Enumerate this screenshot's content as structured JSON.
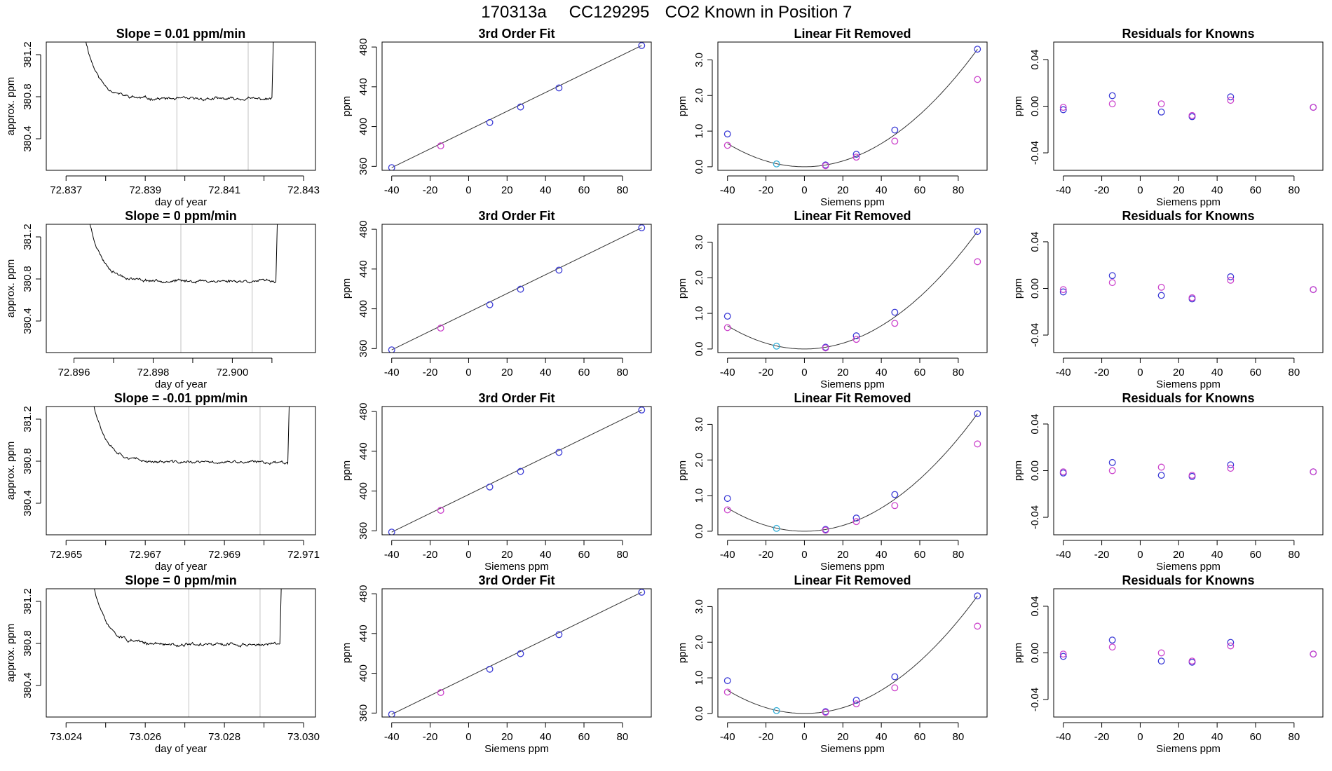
{
  "figure": {
    "title_parts": [
      "170313a",
      "CC129295",
      "CO2 Known in Position  7"
    ],
    "colors": {
      "trace": "#000000",
      "fit_line": "#333333",
      "vline": "#cccccc",
      "blue_points": "#3b3bd6",
      "magenta_points": "#cc44cc",
      "cyan_points": "#38b0d8"
    }
  },
  "chart_data": [
    {
      "type": "line",
      "title": "Slope =  0.01  ppm/min",
      "xlabel": "day of year",
      "ylabel": "approx. ppm",
      "xlim": [
        72.8365,
        72.8433
      ],
      "ylim": [
        380.1,
        381.32
      ],
      "xticks": [
        72.837,
        72.838,
        72.839,
        72.84,
        72.841,
        72.842,
        72.843
      ],
      "xtick_labels": [
        "72.837",
        "",
        "72.839",
        "",
        "72.841",
        "",
        "72.843"
      ],
      "yticks": [
        380.4,
        380.8,
        381.2
      ],
      "ytick_labels": [
        "380.4",
        "380.8",
        "381.2"
      ],
      "vlines": [
        72.8398,
        72.8416
      ],
      "trace": {
        "x_start": 72.8375,
        "x_rise": 72.8422,
        "x_end": 72.8423,
        "settle": 380.78,
        "noise": 0.016,
        "seed": 11
      }
    },
    {
      "type": "line",
      "title": "3rd Order Fit",
      "xlabel": "",
      "ylabel": "ppm",
      "xlim": [
        -45,
        95
      ],
      "ylim": [
        356,
        485
      ],
      "xticks": [
        -40,
        -20,
        0,
        20,
        40,
        60,
        80
      ],
      "xtick_labels": [
        "-40",
        "-20",
        "0",
        "20",
        "40",
        "60",
        "80"
      ],
      "yticks": [
        360,
        400,
        440,
        480
      ],
      "ytick_labels": [
        "360",
        "400",
        "440",
        "480"
      ],
      "fit_line": [
        [
          -40,
          358.7
        ],
        [
          90,
          481.5
        ]
      ],
      "series": [
        {
          "color": "blue",
          "x": [
            -40,
            11,
            27,
            47,
            90
          ],
          "y": [
            358.7,
            404.1,
            419.7,
            438.9,
            481.5
          ]
        },
        {
          "color": "magenta",
          "x": [
            -14.5
          ],
          "y": [
            380.6
          ]
        }
      ]
    },
    {
      "type": "line",
      "title": "Linear Fit Removed",
      "xlabel": "Siemens ppm",
      "ylabel": "ppm",
      "xlim": [
        -45,
        95
      ],
      "ylim": [
        -0.1,
        3.5
      ],
      "xticks": [
        -40,
        -20,
        0,
        20,
        40,
        60,
        80
      ],
      "xtick_labels": [
        "-40",
        "-20",
        "0",
        "20",
        "40",
        "60",
        "80"
      ],
      "yticks": [
        0.0,
        1.0,
        2.0,
        3.0
      ],
      "ytick_labels": [
        "0.0",
        "1.0",
        "2.0",
        "3.0"
      ],
      "curve_coeffs": [
        0.0,
        0.0,
        0.000407
      ],
      "series": [
        {
          "color": "blue",
          "x": [
            -40,
            11,
            27,
            47,
            90
          ],
          "y": [
            0.92,
            0.05,
            0.35,
            1.03,
            3.3
          ]
        },
        {
          "color": "cyan",
          "x": [
            -14.5
          ],
          "y": [
            0.08
          ]
        },
        {
          "color": "magenta",
          "x": [
            -40,
            11,
            27,
            47,
            90
          ],
          "y": [
            0.6,
            0.03,
            0.27,
            0.72,
            2.45
          ]
        }
      ]
    },
    {
      "type": "scatter",
      "title": "Residuals for Knowns",
      "xlabel": "Siemens ppm",
      "ylabel": "ppm",
      "xlim": [
        -45,
        95
      ],
      "ylim": [
        -0.055,
        0.055
      ],
      "xticks": [
        -40,
        -20,
        0,
        20,
        40,
        60,
        80
      ],
      "xtick_labels": [
        "-40",
        "-20",
        "0",
        "20",
        "40",
        "60",
        "80"
      ],
      "yticks": [
        -0.04,
        0.0,
        0.04
      ],
      "ytick_labels": [
        "-0.04",
        "0.00",
        "0.04"
      ],
      "series": [
        {
          "color": "blue",
          "x": [
            -40,
            -14.5,
            11,
            27,
            47,
            90
          ],
          "y": [
            -0.003,
            0.009,
            -0.005,
            -0.009,
            0.008,
            -0.001
          ]
        },
        {
          "color": "magenta",
          "x": [
            -40,
            -14.5,
            11,
            27,
            47,
            90
          ],
          "y": [
            -0.001,
            0.002,
            0.002,
            -0.008,
            0.005,
            -0.001
          ]
        }
      ]
    },
    {
      "type": "line",
      "title": "Slope =  0  ppm/min",
      "xlabel": "day of year",
      "ylabel": "approx. ppm",
      "xlim": [
        72.8953,
        72.9021
      ],
      "ylim": [
        380.1,
        381.32
      ],
      "xticks": [
        72.896,
        72.897,
        72.898,
        72.899,
        72.9,
        72.901
      ],
      "xtick_labels": [
        "72.896",
        "",
        "72.898",
        "",
        "72.900",
        ""
      ],
      "yticks": [
        380.4,
        380.8,
        381.2
      ],
      "ytick_labels": [
        "380.4",
        "380.8",
        "381.2"
      ],
      "vlines": [
        72.8987,
        72.9005
      ],
      "trace": {
        "x_start": 72.8964,
        "x_rise": 72.9011,
        "x_end": 72.9012,
        "settle": 380.78,
        "noise": 0.016,
        "seed": 23
      }
    },
    {
      "type": "line",
      "title": "3rd Order Fit",
      "xlabel": "",
      "ylabel": "ppm",
      "xlim": [
        -45,
        95
      ],
      "ylim": [
        356,
        485
      ],
      "xticks": [
        -40,
        -20,
        0,
        20,
        40,
        60,
        80
      ],
      "xtick_labels": [
        "-40",
        "-20",
        "0",
        "20",
        "40",
        "60",
        "80"
      ],
      "yticks": [
        360,
        400,
        440,
        480
      ],
      "ytick_labels": [
        "360",
        "400",
        "440",
        "480"
      ],
      "fit_line": [
        [
          -40,
          358.7
        ],
        [
          90,
          481.5
        ]
      ],
      "series": [
        {
          "color": "blue",
          "x": [
            -40,
            11,
            27,
            47,
            90
          ],
          "y": [
            358.7,
            404.1,
            419.7,
            438.9,
            481.5
          ]
        },
        {
          "color": "magenta",
          "x": [
            -14.5
          ],
          "y": [
            380.6
          ]
        }
      ]
    },
    {
      "type": "line",
      "title": "Linear Fit Removed",
      "xlabel": "Siemens ppm",
      "ylabel": "ppm",
      "xlim": [
        -45,
        95
      ],
      "ylim": [
        -0.1,
        3.5
      ],
      "xticks": [
        -40,
        -20,
        0,
        20,
        40,
        60,
        80
      ],
      "xtick_labels": [
        "-40",
        "-20",
        "0",
        "20",
        "40",
        "60",
        "80"
      ],
      "yticks": [
        0.0,
        1.0,
        2.0,
        3.0
      ],
      "ytick_labels": [
        "0.0",
        "1.0",
        "2.0",
        "3.0"
      ],
      "curve_coeffs": [
        0.0,
        0.0,
        0.000407
      ],
      "series": [
        {
          "color": "blue",
          "x": [
            -40,
            11,
            27,
            47,
            90
          ],
          "y": [
            0.92,
            0.05,
            0.37,
            1.03,
            3.3
          ]
        },
        {
          "color": "cyan",
          "x": [
            -14.5
          ],
          "y": [
            0.08
          ]
        },
        {
          "color": "magenta",
          "x": [
            -40,
            11,
            27,
            47,
            90
          ],
          "y": [
            0.6,
            0.03,
            0.27,
            0.72,
            2.45
          ]
        }
      ]
    },
    {
      "type": "scatter",
      "title": "Residuals for Knowns",
      "xlabel": "Siemens ppm",
      "ylabel": "ppm",
      "xlim": [
        -45,
        95
      ],
      "ylim": [
        -0.055,
        0.055
      ],
      "xticks": [
        -40,
        -20,
        0,
        20,
        40,
        60,
        80
      ],
      "xtick_labels": [
        "-40",
        "-20",
        "0",
        "20",
        "40",
        "60",
        "80"
      ],
      "yticks": [
        -0.04,
        0.0,
        0.04
      ],
      "ytick_labels": [
        "-0.04",
        "0.00",
        "0.04"
      ],
      "series": [
        {
          "color": "blue",
          "x": [
            -40,
            -14.5,
            11,
            27,
            47,
            90
          ],
          "y": [
            -0.003,
            0.011,
            -0.006,
            -0.009,
            0.01,
            -0.001
          ]
        },
        {
          "color": "magenta",
          "x": [
            -40,
            -14.5,
            11,
            27,
            47,
            90
          ],
          "y": [
            -0.001,
            0.005,
            0.001,
            -0.008,
            0.007,
            -0.001
          ]
        }
      ]
    },
    {
      "type": "line",
      "title": "Slope =  -0.01  ppm/min",
      "xlabel": "day of year",
      "ylabel": "approx. ppm",
      "xlim": [
        72.9645,
        72.9713
      ],
      "ylim": [
        380.1,
        381.32
      ],
      "xticks": [
        72.965,
        72.966,
        72.967,
        72.968,
        72.969,
        72.97,
        72.971
      ],
      "xtick_labels": [
        "72.965",
        "",
        "72.967",
        "",
        "72.969",
        "",
        "72.971"
      ],
      "yticks": [
        380.4,
        380.8,
        381.2
      ],
      "ytick_labels": [
        "380.4",
        "380.8",
        "381.2"
      ],
      "vlines": [
        72.9681,
        72.9699
      ],
      "trace": {
        "x_start": 72.9657,
        "x_rise": 72.9706,
        "x_end": 72.9707,
        "settle": 380.79,
        "noise": 0.016,
        "seed": 37
      }
    },
    {
      "type": "line",
      "title": "3rd Order Fit",
      "xlabel": "Siemens ppm",
      "ylabel": "ppm",
      "xlim": [
        -45,
        95
      ],
      "ylim": [
        356,
        485
      ],
      "xticks": [
        -40,
        -20,
        0,
        20,
        40,
        60,
        80
      ],
      "xtick_labels": [
        "-40",
        "-20",
        "0",
        "20",
        "40",
        "60",
        "80"
      ],
      "yticks": [
        360,
        400,
        440,
        480
      ],
      "ytick_labels": [
        "360",
        "400",
        "440",
        "480"
      ],
      "fit_line": [
        [
          -40,
          358.7
        ],
        [
          90,
          481.5
        ]
      ],
      "series": [
        {
          "color": "blue",
          "x": [
            -40,
            11,
            27,
            47,
            90
          ],
          "y": [
            358.7,
            404.1,
            419.7,
            438.9,
            481.5
          ]
        },
        {
          "color": "magenta",
          "x": [
            -14.5
          ],
          "y": [
            380.6
          ]
        }
      ]
    },
    {
      "type": "line",
      "title": "Linear Fit Removed",
      "xlabel": "Siemens ppm",
      "ylabel": "ppm",
      "xlim": [
        -45,
        95
      ],
      "ylim": [
        -0.1,
        3.5
      ],
      "xticks": [
        -40,
        -20,
        0,
        20,
        40,
        60,
        80
      ],
      "xtick_labels": [
        "-40",
        "-20",
        "0",
        "20",
        "40",
        "60",
        "80"
      ],
      "yticks": [
        0.0,
        1.0,
        2.0,
        3.0
      ],
      "ytick_labels": [
        "0.0",
        "1.0",
        "2.0",
        "3.0"
      ],
      "curve_coeffs": [
        0.0,
        0.0,
        0.000407
      ],
      "series": [
        {
          "color": "blue",
          "x": [
            -40,
            11,
            27,
            47,
            90
          ],
          "y": [
            0.92,
            0.05,
            0.37,
            1.03,
            3.3
          ]
        },
        {
          "color": "cyan",
          "x": [
            -14.5
          ],
          "y": [
            0.08
          ]
        },
        {
          "color": "magenta",
          "x": [
            -40,
            11,
            27,
            47,
            90
          ],
          "y": [
            0.6,
            0.03,
            0.27,
            0.72,
            2.45
          ]
        }
      ]
    },
    {
      "type": "scatter",
      "title": "Residuals for Knowns",
      "xlabel": "Siemens ppm",
      "ylabel": "ppm",
      "xlim": [
        -45,
        95
      ],
      "ylim": [
        -0.055,
        0.055
      ],
      "xticks": [
        -40,
        -20,
        0,
        20,
        40,
        60,
        80
      ],
      "xtick_labels": [
        "-40",
        "-20",
        "0",
        "20",
        "40",
        "60",
        "80"
      ],
      "yticks": [
        -0.04,
        0.0,
        0.04
      ],
      "ytick_labels": [
        "-0.04",
        "0.00",
        "0.04"
      ],
      "series": [
        {
          "color": "blue",
          "x": [
            -40,
            -14.5,
            11,
            27,
            47,
            90
          ],
          "y": [
            -0.002,
            0.007,
            -0.004,
            -0.005,
            0.005,
            -0.001
          ]
        },
        {
          "color": "magenta",
          "x": [
            -40,
            -14.5,
            11,
            27,
            47,
            90
          ],
          "y": [
            -0.001,
            0.0,
            0.003,
            -0.004,
            0.002,
            -0.001
          ]
        }
      ]
    },
    {
      "type": "line",
      "title": "Slope =  0  ppm/min",
      "xlabel": "day of year",
      "ylabel": "approx. ppm",
      "xlim": [
        73.0235,
        73.0303
      ],
      "ylim": [
        380.1,
        381.32
      ],
      "xticks": [
        73.024,
        73.025,
        73.026,
        73.027,
        73.028,
        73.029,
        73.03
      ],
      "xtick_labels": [
        "73.024",
        "",
        "73.026",
        "",
        "73.028",
        "",
        "73.030"
      ],
      "yticks": [
        380.4,
        380.8,
        381.2
      ],
      "ytick_labels": [
        "380.4",
        "380.8",
        "381.2"
      ],
      "vlines": [
        73.0271,
        73.0289
      ],
      "trace": {
        "x_start": 73.0247,
        "x_rise": 73.0294,
        "x_end": 73.0295,
        "settle": 380.79,
        "noise": 0.018,
        "seed": 51
      }
    },
    {
      "type": "line",
      "title": "3rd Order Fit",
      "xlabel": "Siemens ppm",
      "ylabel": "ppm",
      "xlim": [
        -45,
        95
      ],
      "ylim": [
        356,
        485
      ],
      "xticks": [
        -40,
        -20,
        0,
        20,
        40,
        60,
        80
      ],
      "xtick_labels": [
        "-40",
        "-20",
        "0",
        "20",
        "40",
        "60",
        "80"
      ],
      "yticks": [
        360,
        400,
        440,
        480
      ],
      "ytick_labels": [
        "360",
        "400",
        "440",
        "480"
      ],
      "fit_line": [
        [
          -40,
          358.7
        ],
        [
          90,
          481.5
        ]
      ],
      "series": [
        {
          "color": "blue",
          "x": [
            -40,
            11,
            27,
            47,
            90
          ],
          "y": [
            358.7,
            404.1,
            419.7,
            438.9,
            481.5
          ]
        },
        {
          "color": "magenta",
          "x": [
            -14.5
          ],
          "y": [
            380.6
          ]
        }
      ]
    },
    {
      "type": "line",
      "title": "Linear Fit Removed",
      "xlabel": "Siemens ppm",
      "ylabel": "ppm",
      "xlim": [
        -45,
        95
      ],
      "ylim": [
        -0.1,
        3.5
      ],
      "xticks": [
        -40,
        -20,
        0,
        20,
        40,
        60,
        80
      ],
      "xtick_labels": [
        "-40",
        "-20",
        "0",
        "20",
        "40",
        "60",
        "80"
      ],
      "yticks": [
        0.0,
        1.0,
        2.0,
        3.0
      ],
      "ytick_labels": [
        "0.0",
        "1.0",
        "2.0",
        "3.0"
      ],
      "curve_coeffs": [
        0.0,
        0.0,
        0.000407
      ],
      "series": [
        {
          "color": "blue",
          "x": [
            -40,
            11,
            27,
            47,
            90
          ],
          "y": [
            0.92,
            0.05,
            0.37,
            1.03,
            3.3
          ]
        },
        {
          "color": "cyan",
          "x": [
            -14.5
          ],
          "y": [
            0.08
          ]
        },
        {
          "color": "magenta",
          "x": [
            -40,
            11,
            27,
            47,
            90
          ],
          "y": [
            0.6,
            0.03,
            0.27,
            0.72,
            2.45
          ]
        }
      ]
    },
    {
      "type": "scatter",
      "title": "Residuals for Knowns",
      "xlabel": "Siemens ppm",
      "ylabel": "ppm",
      "xlim": [
        -45,
        95
      ],
      "ylim": [
        -0.055,
        0.055
      ],
      "xticks": [
        -40,
        -20,
        0,
        20,
        40,
        60,
        80
      ],
      "xtick_labels": [
        "-40",
        "-20",
        "0",
        "20",
        "40",
        "60",
        "80"
      ],
      "yticks": [
        -0.04,
        0.0,
        0.04
      ],
      "ytick_labels": [
        "-0.04",
        "0.00",
        "0.04"
      ],
      "series": [
        {
          "color": "blue",
          "x": [
            -40,
            -14.5,
            11,
            27,
            47,
            90
          ],
          "y": [
            -0.003,
            0.011,
            -0.007,
            -0.008,
            0.009,
            -0.001
          ]
        },
        {
          "color": "magenta",
          "x": [
            -40,
            -14.5,
            11,
            27,
            47,
            90
          ],
          "y": [
            -0.001,
            0.005,
            0.0,
            -0.007,
            0.006,
            -0.001
          ]
        }
      ]
    }
  ]
}
